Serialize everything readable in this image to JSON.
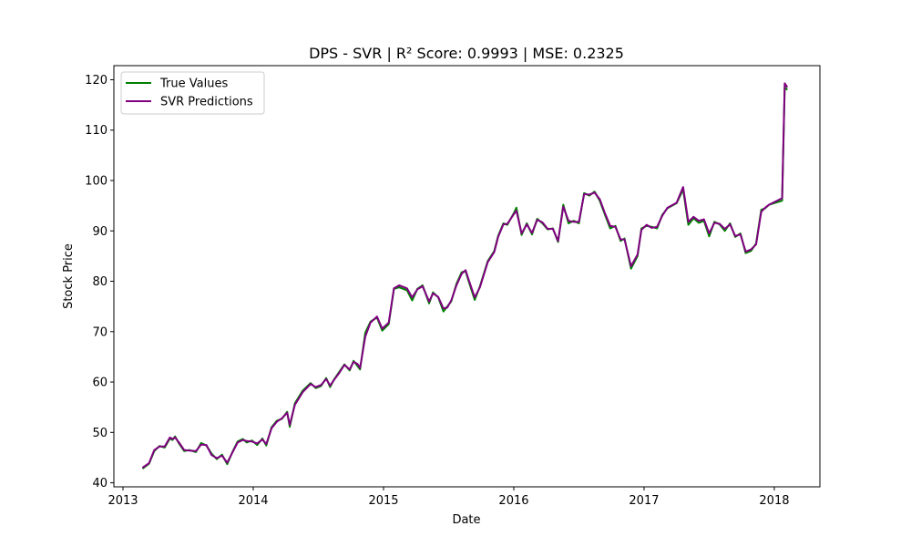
{
  "chart_data": {
    "type": "line",
    "title": "DPS - SVR | R² Score: 0.9993 | MSE: 0.2325",
    "xlabel": "Date",
    "ylabel": "Stock Price",
    "xlim": [
      2012.93,
      2018.35
    ],
    "ylim": [
      39.2,
      122.8
    ],
    "xticks": [
      2013,
      2014,
      2015,
      2016,
      2017,
      2018
    ],
    "xtick_labels": [
      "2013",
      "2014",
      "2015",
      "2016",
      "2017",
      "2018"
    ],
    "yticks": [
      40,
      50,
      60,
      70,
      80,
      90,
      100,
      110,
      120
    ],
    "ytick_labels": [
      "40",
      "50",
      "60",
      "70",
      "80",
      "90",
      "100",
      "110",
      "120"
    ],
    "grid": false,
    "legend_position": "top-left",
    "x": [
      2013.15,
      2013.2,
      2013.24,
      2013.28,
      2013.32,
      2013.36,
      2013.38,
      2013.4,
      2013.43,
      2013.47,
      2013.51,
      2013.56,
      2013.6,
      2013.64,
      2013.68,
      2013.72,
      2013.76,
      2013.8,
      2013.84,
      2013.88,
      2013.92,
      2013.95,
      2013.99,
      2014.03,
      2014.07,
      2014.1,
      2014.14,
      2014.18,
      2014.22,
      2014.26,
      2014.28,
      2014.32,
      2014.38,
      2014.44,
      2014.48,
      2014.52,
      2014.56,
      2014.59,
      2014.62,
      2014.66,
      2014.7,
      2014.74,
      2014.77,
      2014.8,
      2014.82,
      2014.86,
      2014.9,
      2014.95,
      2014.99,
      2015.04,
      2015.08,
      2015.12,
      2015.18,
      2015.22,
      2015.26,
      2015.3,
      2015.35,
      2015.38,
      2015.42,
      2015.46,
      2015.49,
      2015.52,
      2015.56,
      2015.6,
      2015.63,
      2015.65,
      2015.7,
      2015.74,
      2015.8,
      2015.85,
      2015.88,
      2015.92,
      2015.95,
      2016.0,
      2016.02,
      2016.06,
      2016.1,
      2016.14,
      2016.18,
      2016.22,
      2016.26,
      2016.3,
      2016.34,
      2016.38,
      2016.42,
      2016.46,
      2016.5,
      2016.54,
      2016.58,
      2016.62,
      2016.66,
      2016.7,
      2016.74,
      2016.78,
      2016.82,
      2016.85,
      2016.9,
      2016.95,
      2016.98,
      2017.02,
      2017.06,
      2017.1,
      2017.14,
      2017.18,
      2017.25,
      2017.3,
      2017.34,
      2017.38,
      2017.42,
      2017.46,
      2017.5,
      2017.54,
      2017.58,
      2017.62,
      2017.66,
      2017.7,
      2017.74,
      2017.78,
      2017.82,
      2017.86,
      2017.9,
      2017.93,
      2017.96,
      2018.06,
      2018.08,
      2018.1
    ],
    "series": [
      {
        "name": "True Values",
        "color": "#008000",
        "values": [
          42.8,
          43.8,
          46.3,
          47.3,
          47.0,
          48.8,
          48.5,
          49.2,
          47.8,
          46.3,
          46.5,
          46.1,
          47.9,
          47.4,
          45.8,
          44.7,
          45.6,
          43.7,
          46.1,
          48.2,
          48.7,
          48.0,
          48.4,
          47.5,
          48.8,
          47.4,
          51.0,
          52.3,
          52.7,
          54.1,
          51.1,
          55.8,
          58.3,
          59.8,
          58.8,
          59.2,
          60.8,
          59.0,
          60.5,
          62.0,
          63.5,
          62.3,
          64.2,
          63.2,
          62.5,
          69.8,
          72.0,
          72.8,
          70.2,
          71.5,
          78.5,
          78.8,
          78.2,
          76.2,
          78.5,
          79.2,
          75.6,
          77.8,
          76.8,
          74.0,
          75.0,
          76.0,
          79.5,
          81.8,
          82.0,
          80.3,
          76.3,
          79.0,
          84.0,
          86.0,
          89.0,
          91.5,
          91.2,
          93.5,
          94.6,
          89.2,
          91.5,
          89.3,
          92.4,
          91.5,
          90.3,
          90.5,
          87.8,
          95.2,
          91.5,
          92.0,
          91.5,
          97.5,
          97.0,
          97.8,
          96.0,
          93.2,
          90.5,
          91.0,
          88.0,
          88.5,
          82.5,
          85.0,
          90.5,
          91.0,
          90.8,
          90.5,
          93.2,
          94.5,
          95.5,
          98.2,
          91.2,
          92.5,
          91.6,
          92.0,
          88.9,
          91.8,
          91.3,
          90.0,
          91.5,
          88.8,
          89.5,
          85.6,
          86.0,
          87.5,
          94.2,
          94.5,
          95.2,
          96.0,
          118.5,
          118.0
        ]
      },
      {
        "name": "SVR Predictions",
        "color": "#800080",
        "values": [
          43.0,
          43.9,
          46.5,
          47.2,
          47.2,
          49.0,
          48.7,
          49.0,
          48.0,
          46.5,
          46.4,
          46.3,
          47.6,
          47.5,
          45.5,
          44.9,
          45.4,
          44.0,
          46.0,
          48.0,
          48.5,
          48.3,
          48.2,
          47.8,
          48.6,
          47.7,
          50.8,
          52.1,
          52.8,
          53.9,
          51.5,
          55.5,
          58.0,
          59.6,
          59.0,
          59.4,
          60.6,
          59.3,
          60.4,
          61.8,
          63.4,
          62.5,
          64.0,
          63.6,
          62.8,
          69.0,
          71.8,
          73.0,
          70.6,
          71.8,
          78.6,
          79.2,
          78.6,
          76.8,
          78.4,
          79.0,
          76.0,
          77.6,
          76.9,
          74.6,
          74.8,
          76.2,
          79.2,
          81.5,
          82.2,
          80.6,
          76.8,
          78.8,
          83.8,
          85.8,
          88.8,
          91.3,
          91.4,
          93.3,
          94.0,
          89.5,
          91.3,
          89.6,
          92.2,
          91.7,
          90.4,
          90.4,
          88.0,
          94.8,
          92.0,
          91.8,
          91.8,
          97.3,
          97.2,
          97.6,
          96.3,
          93.5,
          91.0,
          90.8,
          88.3,
          88.3,
          83.0,
          85.3,
          90.2,
          91.2,
          90.6,
          90.8,
          93.0,
          94.6,
          95.6,
          98.7,
          91.8,
          92.8,
          92.0,
          92.3,
          89.5,
          91.6,
          91.4,
          90.4,
          91.3,
          89.0,
          89.3,
          85.9,
          86.3,
          87.3,
          93.8,
          94.6,
          95.2,
          96.5,
          119.3,
          118.5
        ]
      }
    ]
  }
}
